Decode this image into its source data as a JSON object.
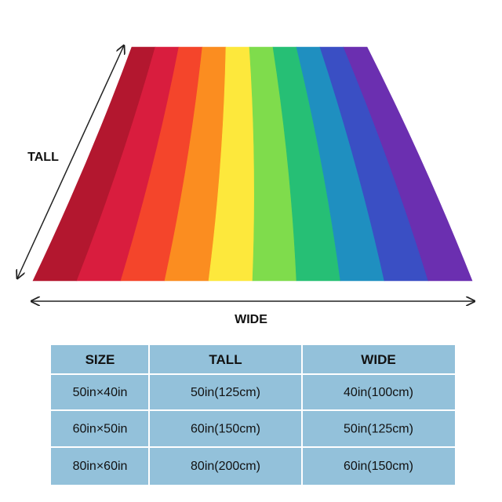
{
  "labels": {
    "tall": "TALL",
    "wide": "WIDE"
  },
  "table": {
    "header": [
      "SIZE",
      "TALL",
      "WIDE"
    ],
    "rows": [
      [
        "50in×40in",
        "50in(125cm)",
        "40in(100cm)"
      ],
      [
        "60in×50in",
        "60in(150cm)",
        "50in(125cm)"
      ],
      [
        "80in×60in",
        "80in(200cm)",
        "60in(150cm)"
      ]
    ]
  }
}
